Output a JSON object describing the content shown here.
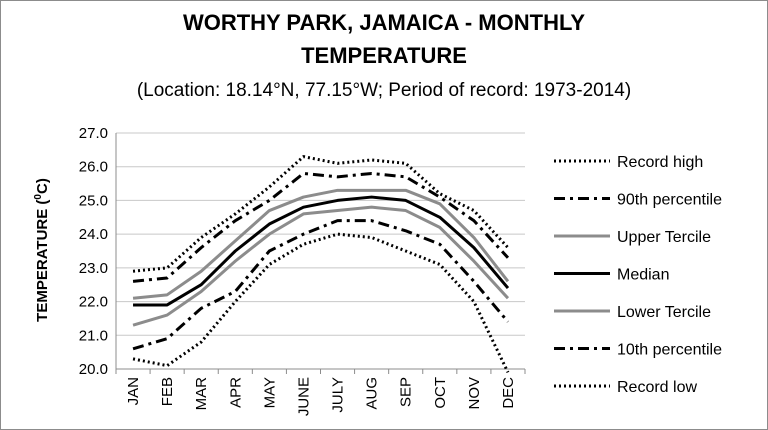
{
  "chart_data": {
    "type": "line",
    "title_line1": "WORTHY PARK, JAMAICA - MONTHLY",
    "title_line2": "TEMPERATURE",
    "subtitle": "(Location: 18.14°N, 77.15°W; Period of record: 1973-2014)",
    "ylabel_main": "TEMPERATURE (",
    "ylabel_sup": "0",
    "ylabel_end": "C)",
    "xlabel": "",
    "categories": [
      "JAN",
      "FEB",
      "MAR",
      "APR",
      "MAY",
      "JUNE",
      "JULY",
      "AUG",
      "SEP",
      "OCT",
      "NOV",
      "DEC"
    ],
    "ylim": [
      20.0,
      27.0
    ],
    "yticks": [
      "20.0",
      "21.0",
      "22.0",
      "23.0",
      "24.0",
      "25.0",
      "26.0",
      "27.0"
    ],
    "grid": true,
    "legend_position": "right",
    "series": [
      {
        "name": "Record high",
        "style": "dotted",
        "color": "#000000",
        "values": [
          22.9,
          23.0,
          23.9,
          24.6,
          25.4,
          26.3,
          26.1,
          26.2,
          26.1,
          25.2,
          24.7,
          23.6
        ]
      },
      {
        "name": "90th percentile",
        "style": "dashdot",
        "color": "#000000",
        "values": [
          22.6,
          22.7,
          23.6,
          24.4,
          25.0,
          25.8,
          25.7,
          25.8,
          25.7,
          25.1,
          24.4,
          23.3
        ]
      },
      {
        "name": "Upper Tercile",
        "style": "solid",
        "color": "#8c8c8c",
        "values": [
          22.1,
          22.2,
          22.9,
          23.8,
          24.7,
          25.1,
          25.3,
          25.3,
          25.3,
          24.9,
          23.9,
          22.6
        ]
      },
      {
        "name": "Median",
        "style": "solid",
        "color": "#000000",
        "values": [
          21.9,
          21.9,
          22.5,
          23.5,
          24.3,
          24.8,
          25.0,
          25.1,
          25.0,
          24.5,
          23.6,
          22.4
        ]
      },
      {
        "name": "Lower Tercile",
        "style": "solid",
        "color": "#8c8c8c",
        "values": [
          21.3,
          21.6,
          22.3,
          23.2,
          24.0,
          24.6,
          24.7,
          24.8,
          24.7,
          24.2,
          23.2,
          22.1
        ]
      },
      {
        "name": "10th percentile",
        "style": "dashdot",
        "color": "#000000",
        "values": [
          20.6,
          20.9,
          21.8,
          22.3,
          23.5,
          24.0,
          24.4,
          24.4,
          24.1,
          23.7,
          22.6,
          21.4
        ]
      },
      {
        "name": "Record low",
        "style": "dotted",
        "color": "#000000",
        "values": [
          20.3,
          20.1,
          20.8,
          22.0,
          23.1,
          23.7,
          24.0,
          23.9,
          23.5,
          23.1,
          22.0,
          19.9
        ]
      }
    ]
  }
}
